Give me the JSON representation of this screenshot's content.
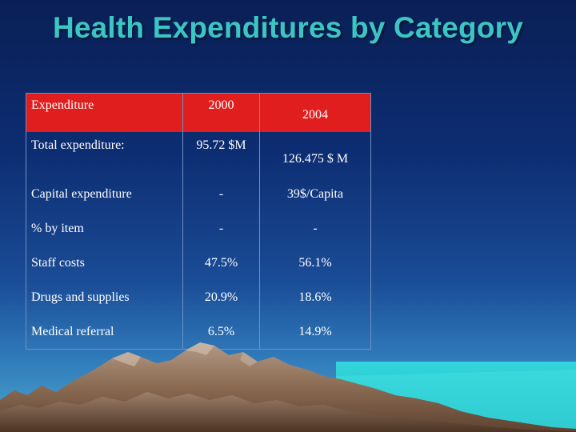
{
  "slide": {
    "title": "Health Expenditures by Category"
  },
  "table": {
    "headers": [
      "Expenditure",
      "2000",
      "2004"
    ],
    "rows": [
      [
        "Total expenditure:",
        "95.72 $M",
        "126.475 $ M"
      ],
      [
        "Capital expenditure",
        "-",
        "39$/Capita"
      ],
      [
        "% by item",
        "-",
        "-"
      ],
      [
        "Staff costs",
        "47.5%",
        "56.1%"
      ],
      [
        "Drugs and supplies",
        "20.9%",
        "18.6%"
      ],
      [
        "Medical referral",
        "6.5%",
        "14.9%"
      ]
    ]
  },
  "colors": {
    "title": "#3cc5c5",
    "header_bg": "#e01e1e",
    "text": "#ffffff"
  }
}
